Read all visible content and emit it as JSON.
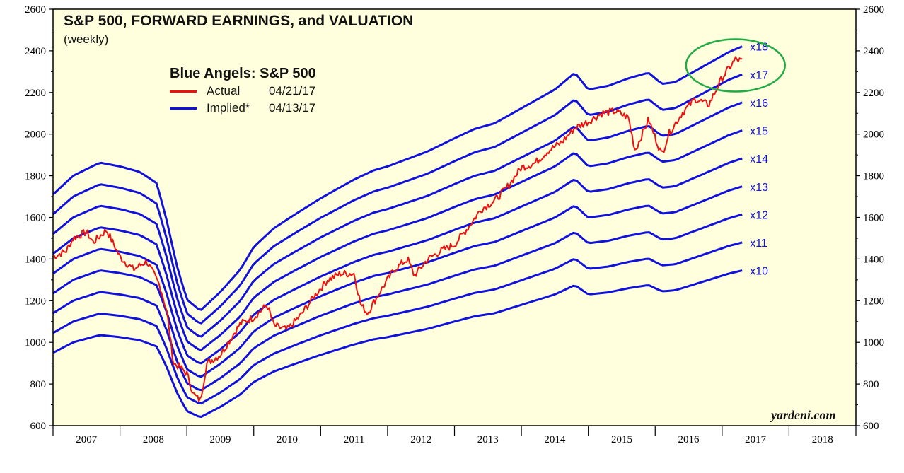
{
  "chart_data": {
    "type": "line",
    "title": "S&P 500, FORWARD EARNINGS, and VALUATION",
    "subtitle": "(weekly)",
    "legend_title": "Blue Angels: S&P 500",
    "legend": [
      {
        "name": "Actual",
        "date": "04/21/17",
        "color": "#ee1111"
      },
      {
        "name": "Implied*",
        "date": "04/13/17",
        "color": "#1111dd"
      }
    ],
    "watermark": "yardeni.com",
    "xlim": [
      2007,
      2019
    ],
    "ylim": [
      600,
      2600
    ],
    "yticks": [
      600,
      800,
      1000,
      1200,
      1400,
      1600,
      1800,
      2000,
      2200,
      2400,
      2600
    ],
    "xticks": [
      2007,
      2008,
      2009,
      2010,
      2011,
      2012,
      2013,
      2014,
      2015,
      2016,
      2017,
      2018
    ],
    "multiples": [
      10,
      11,
      12,
      13,
      14,
      15,
      16,
      17,
      18
    ],
    "multiple_labels": [
      "x10",
      "x11",
      "x12",
      "x13",
      "x14",
      "x15",
      "x16",
      "x17",
      "x18"
    ],
    "forward_earnings": {
      "x": [
        2007.0,
        2007.3,
        2007.7,
        2008.0,
        2008.3,
        2008.55,
        2008.7,
        2008.85,
        2009.0,
        2009.2,
        2009.5,
        2009.8,
        2010.0,
        2010.3,
        2010.6,
        2011.0,
        2011.2,
        2011.5,
        2011.8,
        2012.0,
        2012.3,
        2012.6,
        2013.0,
        2013.3,
        2013.6,
        2014.0,
        2014.3,
        2014.5,
        2014.8,
        2015.0,
        2015.3,
        2015.6,
        2015.9,
        2016.1,
        2016.3,
        2016.6,
        2016.9,
        2017.1,
        2017.3
      ],
      "values": [
        95.0,
        100.0,
        103.5,
        102.5,
        101.0,
        98.0,
        88.0,
        76.0,
        67.0,
        64.0,
        69.0,
        75.0,
        81.0,
        86.0,
        89.5,
        94.0,
        96.0,
        99.0,
        101.5,
        102.5,
        104.5,
        106.5,
        110.0,
        112.5,
        114.0,
        118.0,
        121.0,
        123.0,
        127.5,
        123.0,
        124.0,
        126.0,
        127.5,
        124.5,
        125.0,
        128.0,
        131.0,
        133.0,
        134.5
      ]
    },
    "actual": {
      "x": [
        2007.0,
        2007.2,
        2007.3,
        2007.5,
        2007.6,
        2007.8,
        2008.0,
        2008.2,
        2008.4,
        2008.6,
        2008.7,
        2008.8,
        2008.9,
        2009.0,
        2009.1,
        2009.2,
        2009.3,
        2009.5,
        2009.7,
        2009.8,
        2010.0,
        2010.2,
        2010.3,
        2010.5,
        2010.7,
        2010.9,
        2011.1,
        2011.3,
        2011.5,
        2011.6,
        2011.7,
        2011.9,
        2012.1,
        2012.3,
        2012.4,
        2012.6,
        2012.8,
        2013.0,
        2013.2,
        2013.4,
        2013.6,
        2013.8,
        2014.0,
        2014.2,
        2014.4,
        2014.6,
        2014.8,
        2015.0,
        2015.2,
        2015.4,
        2015.6,
        2015.7,
        2015.9,
        2016.1,
        2016.2,
        2016.4,
        2016.6,
        2016.8,
        2017.0,
        2017.2,
        2017.3
      ],
      "values": [
        1410,
        1440,
        1500,
        1530,
        1480,
        1540,
        1410,
        1350,
        1390,
        1270,
        1150,
        900,
        880,
        850,
        750,
        720,
        900,
        940,
        1040,
        1090,
        1120,
        1180,
        1080,
        1060,
        1130,
        1220,
        1300,
        1330,
        1330,
        1180,
        1140,
        1250,
        1350,
        1400,
        1320,
        1400,
        1440,
        1470,
        1550,
        1640,
        1680,
        1750,
        1840,
        1860,
        1920,
        1960,
        2030,
        2060,
        2100,
        2110,
        2080,
        1920,
        2070,
        1900,
        2000,
        2100,
        2170,
        2140,
        2270,
        2360,
        2350
      ]
    }
  }
}
